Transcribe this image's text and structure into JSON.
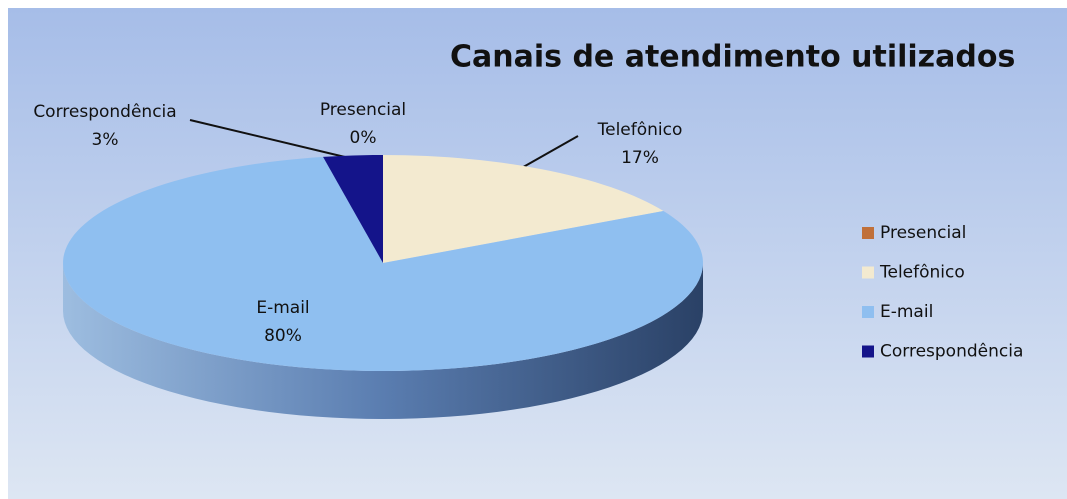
{
  "chart_data": {
    "type": "pie",
    "title": "Canais de atendimento utilizados",
    "categories": [
      "Presencial",
      "Telefônico",
      "E-mail",
      "Correspondência"
    ],
    "values": [
      0,
      17,
      80,
      3
    ],
    "value_labels": [
      "0%",
      "17%",
      "80%",
      "3%"
    ],
    "colors": [
      "#c0703a",
      "#f3ead0",
      "#8fbff0",
      "#14148a"
    ],
    "legend": "right"
  }
}
